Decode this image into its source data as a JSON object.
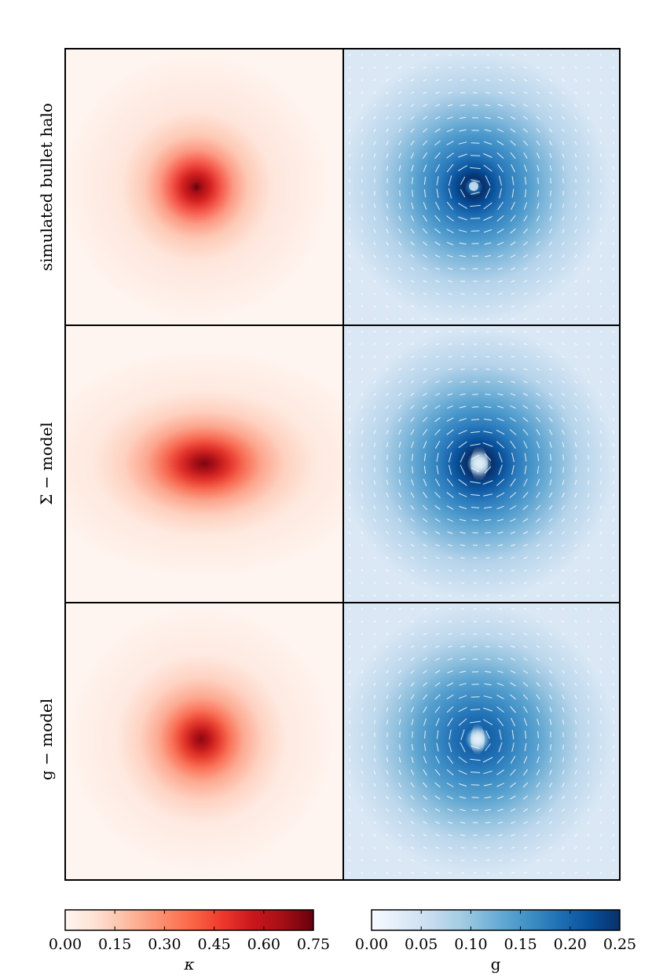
{
  "chart_data": [
    {
      "type": "heatmap",
      "row_labels": [
        "simulated bullet halo",
        "Σ − model",
        "g − model"
      ],
      "panels": [
        {
          "row": "simulated bullet halo",
          "quantity": "κ",
          "colormap": "Reds",
          "peak_kappa": 0.75,
          "shape": "round, compact core"
        },
        {
          "row": "Σ − model",
          "quantity": "κ",
          "colormap": "Reds",
          "peak_kappa": 0.72,
          "shape": "horizontally elongated core"
        },
        {
          "row": "g − model",
          "quantity": "κ",
          "colormap": "Reds",
          "peak_kappa": 0.68,
          "shape": "round core"
        }
      ],
      "colorbar": {
        "label": "κ",
        "range": [
          0,
          0.75
        ],
        "ticks": [
          "0.00",
          "0.15",
          "0.30",
          "0.45",
          "0.60",
          "0.75"
        ]
      }
    },
    {
      "type": "heatmap",
      "row_labels": [
        "simulated bullet halo",
        "Σ − model",
        "g − model"
      ],
      "panels": [
        {
          "row": "simulated bullet halo",
          "quantity": "g",
          "colormap": "Blues",
          "peak_g": 0.25,
          "whiskers": "tangential shear sticks"
        },
        {
          "row": "Σ − model",
          "quantity": "g",
          "colormap": "Blues",
          "peak_g": 0.25,
          "whiskers": "tangential shear sticks"
        },
        {
          "row": "g − model",
          "quantity": "g",
          "colormap": "Blues",
          "peak_g": 0.2,
          "whiskers": "tangential shear sticks"
        }
      ],
      "colorbar": {
        "label": "g",
        "range": [
          0,
          0.25
        ],
        "ticks": [
          "0.00",
          "0.05",
          "0.10",
          "0.15",
          "0.20",
          "0.25"
        ]
      }
    }
  ],
  "colors": {
    "reds_low": "#fff5f0",
    "reds_high": "#67000d",
    "blues_low": "#f7fbff",
    "blues_high": "#08306b",
    "whisker": "#ffffff",
    "frame": "#000000"
  }
}
